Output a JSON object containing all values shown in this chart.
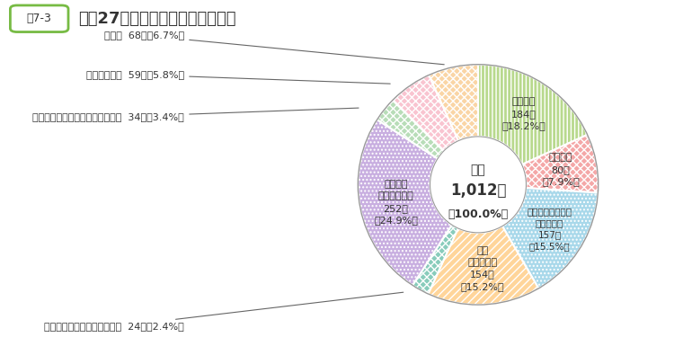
{
  "title": "平成27年度苦情相談の内容別件数",
  "figure_label": "図7-3",
  "segments": [
    {
      "label": "任用関係",
      "count": 184,
      "pct": "18.2",
      "value": 184,
      "color": "#b8d98d",
      "hatch": "||||",
      "text_inside": true
    },
    {
      "label": "給与関係",
      "count": 80,
      "pct": "7.9",
      "value": 80,
      "color": "#f4a7a7",
      "hatch": "xxxx",
      "text_inside": true
    },
    {
      "label": "勤務時間、休暇、\n服務等関係",
      "count": 157,
      "pct": "15.5",
      "value": 157,
      "color": "#a8d8ea",
      "hatch": "....",
      "text_inside": true
    },
    {
      "label": "健康\n安全等関係",
      "count": 154,
      "pct": "15.2",
      "value": 154,
      "color": "#ffd59a",
      "hatch": "////",
      "text_inside": true
    },
    {
      "label": "セクシュアル・ハラスメント",
      "count": 24,
      "pct": "2.4",
      "value": 24,
      "color": "#88ccbb",
      "hatch": "xxxx",
      "text_inside": false
    },
    {
      "label": "パワー・\nハラスメント",
      "count": 252,
      "pct": "24.9",
      "value": 252,
      "color": "#c8aee0",
      "hatch": "....",
      "text_inside": true
    },
    {
      "label": "パワハラ以外のいじめ・嫌がらせ",
      "count": 34,
      "pct": "3.4",
      "value": 34,
      "color": "#b8ddb8",
      "hatch": "xxxx",
      "text_inside": false
    },
    {
      "label": "人事評価関係",
      "count": 59,
      "pct": "5.8",
      "value": 59,
      "color": "#f9c4d0",
      "hatch": "xxxx",
      "text_inside": false
    },
    {
      "label": "その他",
      "count": 68,
      "pct": "6.7",
      "value": 68,
      "color": "#fad5a5",
      "hatch": "xxxx",
      "text_inside": false
    }
  ],
  "bg_color": "#ffffff",
  "text_color": "#333333",
  "label_color": "#555566"
}
